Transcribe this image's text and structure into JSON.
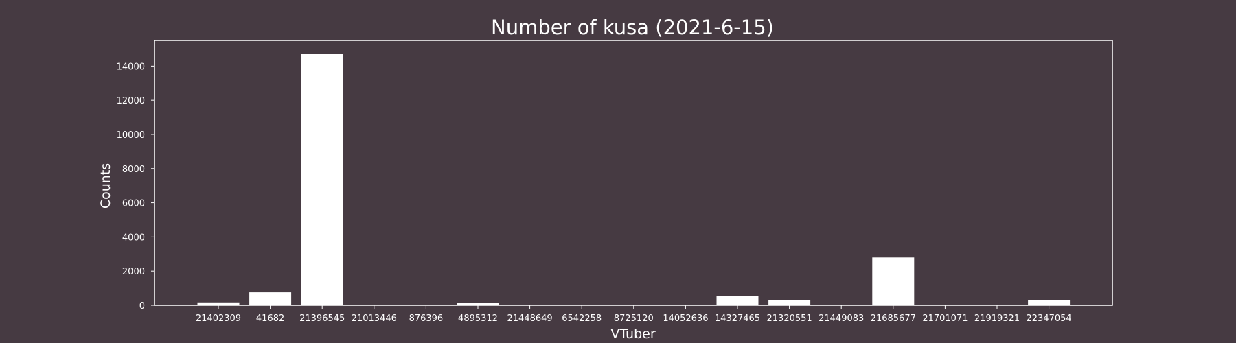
{
  "chart_data": {
    "type": "bar",
    "title": "Number of kusa (2021-6-15)",
    "xlabel": "VTuber",
    "ylabel": "Counts",
    "categories": [
      "21402309",
      "41682",
      "21396545",
      "21013446",
      "876396",
      "4895312",
      "21448649",
      "6542258",
      "8725120",
      "14052636",
      "14327465",
      "21320551",
      "21449083",
      "21685677",
      "21701071",
      "21919321",
      "22347054"
    ],
    "values": [
      170,
      760,
      14700,
      15,
      10,
      120,
      8,
      5,
      5,
      5,
      560,
      280,
      40,
      2800,
      10,
      5,
      310
    ],
    "yticks": [
      0,
      2000,
      4000,
      6000,
      8000,
      10000,
      12000,
      14000
    ],
    "ylim": [
      0,
      15500
    ],
    "grid": false,
    "colors": {
      "background": "#463a42",
      "bar": "#ffffff",
      "text": "#ffffff",
      "axes": "#ffffff"
    }
  }
}
